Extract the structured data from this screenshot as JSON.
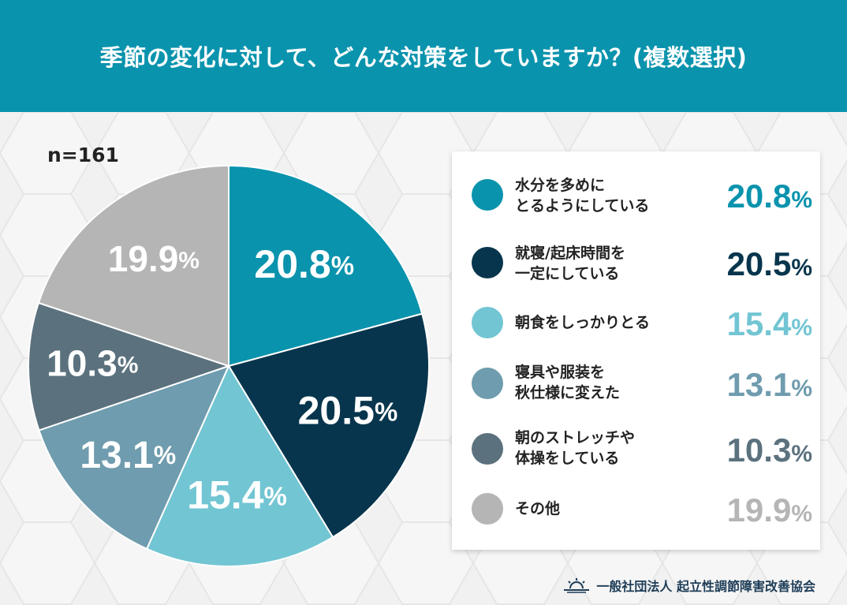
{
  "header": {
    "title": "季節の変化に対して、どんな対策をしていますか？(複数選択)"
  },
  "sample": "n=161",
  "footer": {
    "org": "一般社団法人 起立性調節障害改善協会",
    "logo_icon": "sunrise-logo-icon"
  },
  "colors": {
    "header_bg": "#0a93ad",
    "water": "#0a93ad",
    "sleep": "#07354d",
    "breakfast": "#72c5d3",
    "bedding": "#6f9cae",
    "stretch": "#5b717e",
    "other": "#b5b5b5"
  },
  "chart_data": {
    "type": "pie",
    "title": "季節の変化に対して、どんな対策をしていますか？(複数選択)",
    "n": 161,
    "unit": "%",
    "slices": [
      {
        "label": "水分を多めにとるようにしている",
        "line1": "水分を多めに",
        "line2": "とるようにしている",
        "value": 20.8,
        "display": "20.8",
        "color": "#0a93ad"
      },
      {
        "label": "就寝/起床時間を一定にしている",
        "line1": "就寝/起床時間を",
        "line2": "一定にしている",
        "value": 20.5,
        "display": "20.5",
        "color": "#07354d"
      },
      {
        "label": "朝食をしっかりとる",
        "line1": "朝食をしっかりとる",
        "line2": "",
        "value": 15.4,
        "display": "15.4",
        "color": "#72c5d3"
      },
      {
        "label": "寝具や服装を秋仕様に変えた",
        "line1": "寝具や服装を",
        "line2": "秋仕様に変えた",
        "value": 13.1,
        "display": "13.1",
        "color": "#6f9cae"
      },
      {
        "label": "朝のストレッチや体操をしている",
        "line1": "朝のストレッチや",
        "line2": "体操をしている",
        "value": 10.3,
        "display": "10.3",
        "color": "#5b717e"
      },
      {
        "label": "その他",
        "line1": "その他",
        "line2": "",
        "value": 19.9,
        "display": "19.9",
        "color": "#b5b5b5"
      }
    ]
  }
}
